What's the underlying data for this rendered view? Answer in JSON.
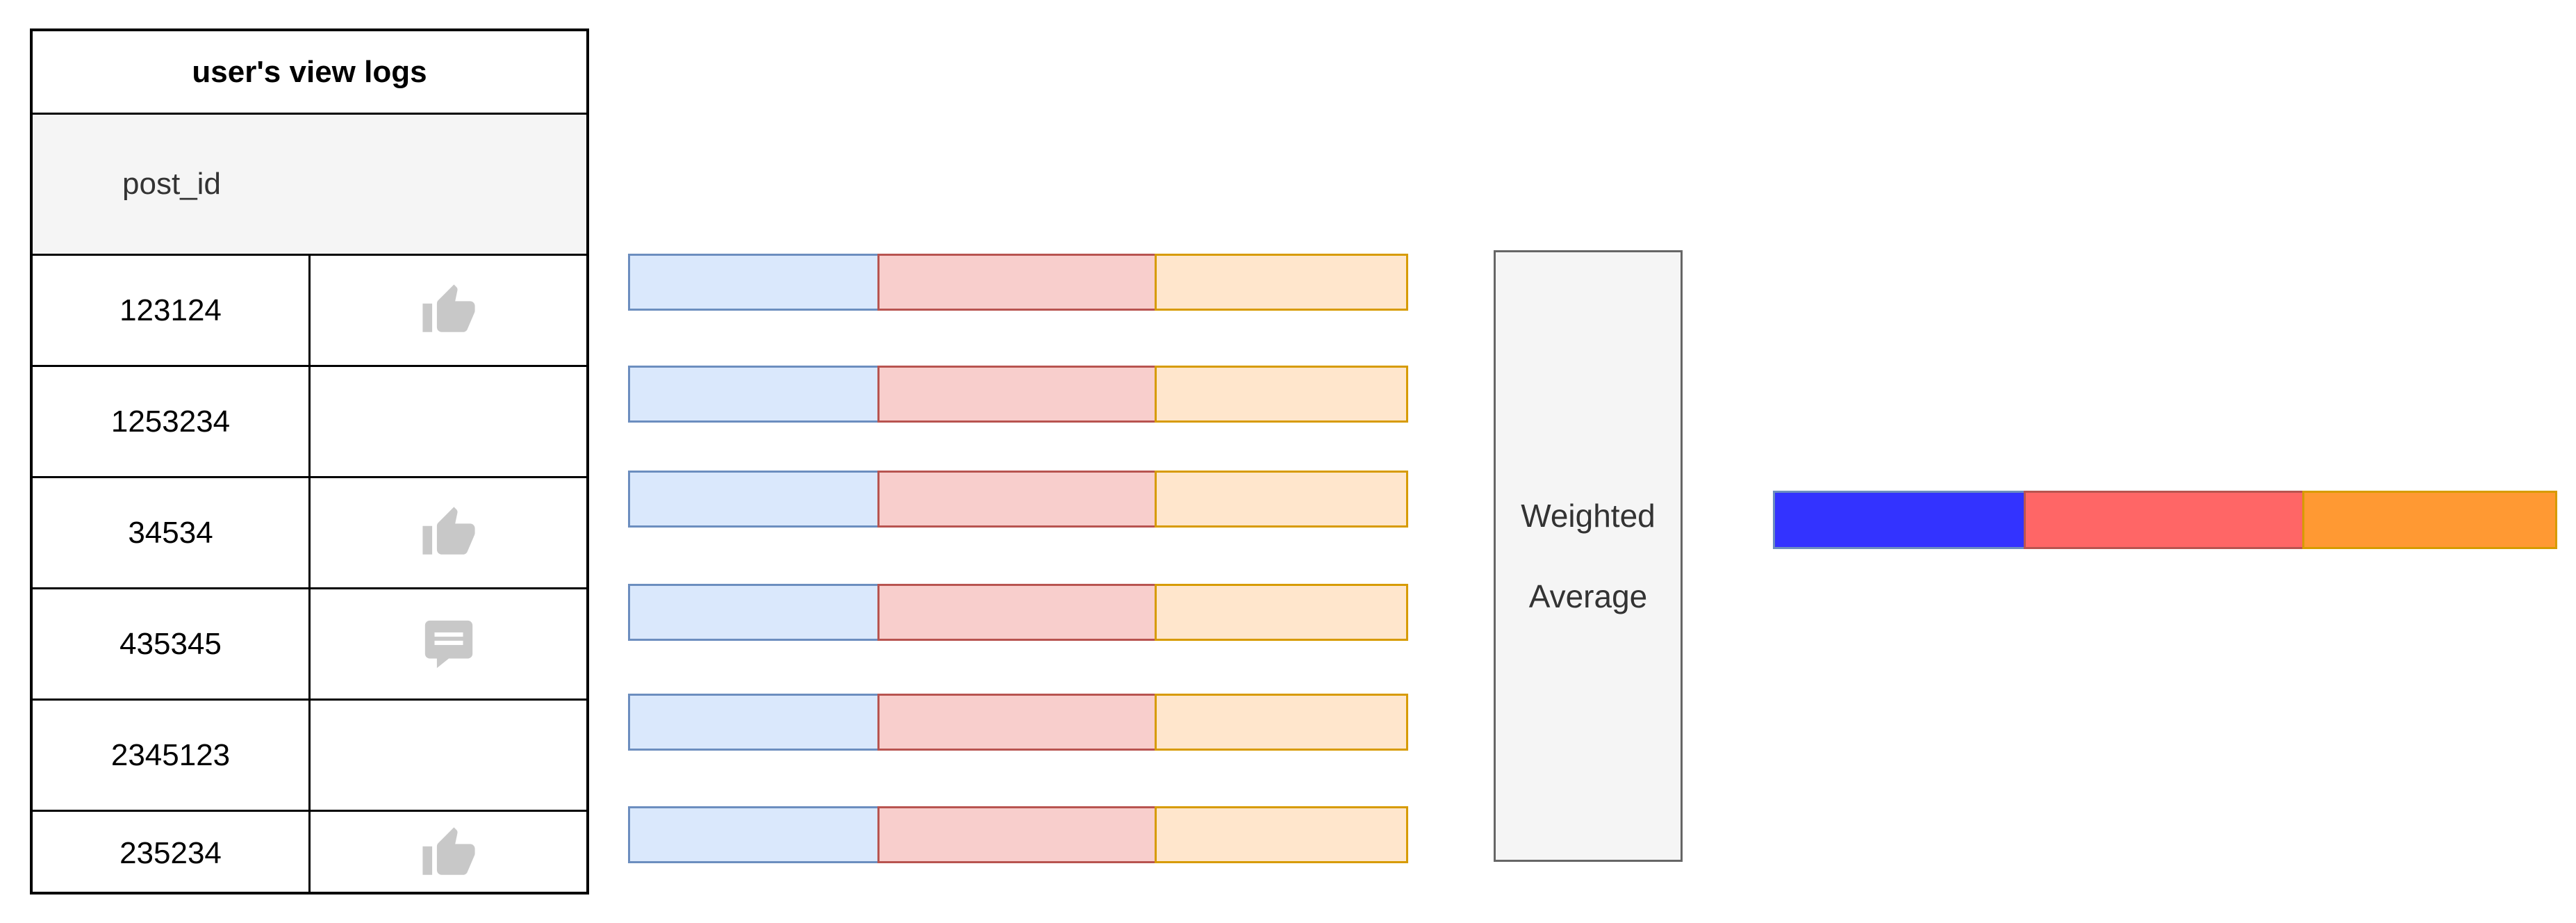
{
  "table": {
    "title": "user's view logs",
    "column_header": "post_id",
    "rows": [
      {
        "post_id": "123124",
        "action_icon": "thumbs-up-icon"
      },
      {
        "post_id": "1253234",
        "action_icon": ""
      },
      {
        "post_id": "34534",
        "action_icon": "thumbs-up-icon"
      },
      {
        "post_id": "435345",
        "action_icon": "comment-icon"
      },
      {
        "post_id": "2345123",
        "action_icon": ""
      },
      {
        "post_id": "235234",
        "action_icon": "thumbs-up-icon"
      }
    ]
  },
  "embedding_colors": {
    "segment_1": {
      "fill": "#dae8fc",
      "stroke": "#6c8ebf"
    },
    "segment_2": {
      "fill": "#f8cecc",
      "stroke": "#b85450"
    },
    "segment_3": {
      "fill": "#ffe6cc",
      "stroke": "#d79b00"
    }
  },
  "aggregator": {
    "line1": "Weighted",
    "line2": "Average"
  },
  "output_colors": {
    "segment_1": "#3333ff",
    "segment_2": "#ff6666",
    "segment_3": "#ff9933"
  },
  "icon_color": "#c8c8c8"
}
